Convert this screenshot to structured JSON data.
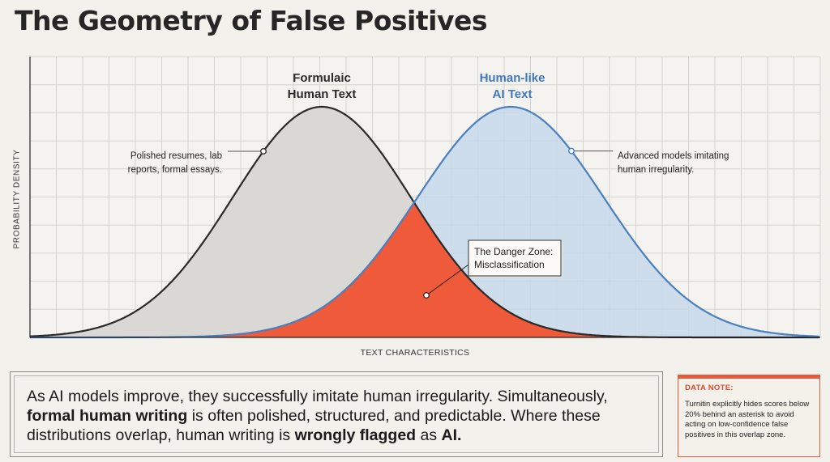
{
  "title": "The Geometry of False Positives",
  "chart_data": {
    "type": "area",
    "xlabel": "TEXT CHARACTERISTICS",
    "ylabel": "PROBABILITY DENSITY",
    "grid": true,
    "series": [
      {
        "name": "Formulaic Human Text",
        "name_lines": [
          "Formulaic",
          "Human Text"
        ],
        "mean": 397,
        "sd": 110,
        "color": "#2a2a2a",
        "fill": "#d9d8d4",
        "annotation": [
          "Polished resumes, lab",
          "reports, formal essays."
        ]
      },
      {
        "name": "Human-like AI Text",
        "name_lines": [
          "Human-like",
          "AI Text"
        ],
        "mean": 630,
        "sd": 115,
        "color": "#4a7fc0",
        "fill": "#c5d8ea",
        "annotation": [
          "Advanced models imitating",
          "human irregularity."
        ]
      }
    ],
    "overlap": {
      "label": [
        "The Danger Zone:",
        "Misclassification"
      ],
      "color": "#ee5a3a"
    }
  },
  "summary": {
    "p1": "As AI models improve, they successfully imitate human irregularity. Simultaneously,",
    "b1": "formal human writing",
    "p2": "is often polished, structured, and predictable. Where these distributions overlap, human writing is",
    "b2": "wrongly flagged",
    "p3": "as",
    "b3": "AI."
  },
  "note": {
    "title": "DATA NOTE:",
    "text": "Turnitin explicitly hides scores below 20% behind an asterisk to avoid acting on low-confidence false positives in this overlap zone.",
    "accent": "#e45a3c"
  }
}
